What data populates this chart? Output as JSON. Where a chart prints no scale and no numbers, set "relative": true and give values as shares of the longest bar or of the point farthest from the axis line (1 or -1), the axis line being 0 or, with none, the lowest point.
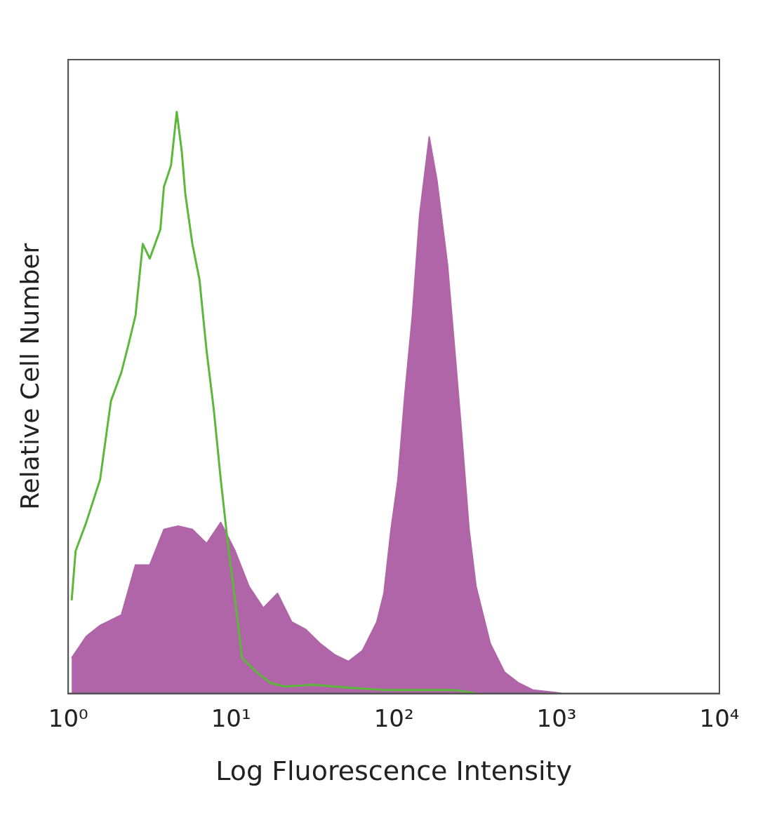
{
  "chart_data": {
    "type": "area",
    "xlabel": "Log Fluorescence Intensity",
    "ylabel": "Relative Cell Number",
    "relative": true,
    "log": "x",
    "xlim": [
      1,
      10000
    ],
    "xticks": [
      {
        "value": 1,
        "label": "10⁰"
      },
      {
        "value": 10,
        "label": "10¹"
      },
      {
        "value": 100,
        "label": "10²"
      },
      {
        "value": 1000,
        "label": "10³"
      },
      {
        "value": 10000,
        "label": "10⁴"
      }
    ],
    "grid": false,
    "legend": false,
    "series": [
      {
        "color": "#b065a8",
        "x": [
          1.05,
          1.29,
          1.57,
          2.12,
          2.59,
          3.17,
          3.87,
          4.73,
          5.79,
          7.08,
          8.65,
          10.6,
          12.9,
          15.8,
          19.3,
          23.6,
          28.8,
          35.2,
          43.1,
          52.6,
          64.3,
          78.6,
          86.9,
          96.1,
          106,
          117,
          130,
          144,
          165,
          184,
          214,
          237,
          262,
          290,
          320,
          391,
          478,
          585,
          715,
          965,
          1070
        ],
        "values": [
          0.061,
          0.098,
          0.117,
          0.135,
          0.221,
          0.221,
          0.282,
          0.288,
          0.282,
          0.258,
          0.294,
          0.245,
          0.184,
          0.147,
          0.172,
          0.123,
          0.11,
          0.086,
          0.067,
          0.055,
          0.074,
          0.123,
          0.172,
          0.282,
          0.368,
          0.515,
          0.65,
          0.822,
          0.957,
          0.883,
          0.736,
          0.589,
          0.442,
          0.282,
          0.184,
          0.086,
          0.037,
          0.018,
          0.006,
          0.002,
          0
        ]
      },
      {
        "type": "line",
        "color": "#5cb83a",
        "x": [
          1.05,
          1.11,
          1.29,
          1.57,
          1.83,
          2.12,
          2.35,
          2.59,
          2.87,
          3.17,
          3.68,
          3.87,
          4.28,
          4.64,
          4.98,
          5.24,
          5.79,
          6.4,
          7.08,
          7.82,
          8.65,
          9.56,
          10.6,
          11.7,
          14.3,
          17.5,
          21.3,
          31.8,
          52.6,
          86.9,
          144,
          237,
          320
        ],
        "values": [
          0.16,
          0.245,
          0.294,
          0.368,
          0.503,
          0.552,
          0.601,
          0.65,
          0.773,
          0.748,
          0.798,
          0.871,
          0.908,
          1,
          0.933,
          0.859,
          0.773,
          0.712,
          0.589,
          0.491,
          0.368,
          0.258,
          0.16,
          0.061,
          0.037,
          0.018,
          0.012,
          0.015,
          0.01,
          0.006,
          0.006,
          0.006,
          0
        ]
      }
    ]
  }
}
